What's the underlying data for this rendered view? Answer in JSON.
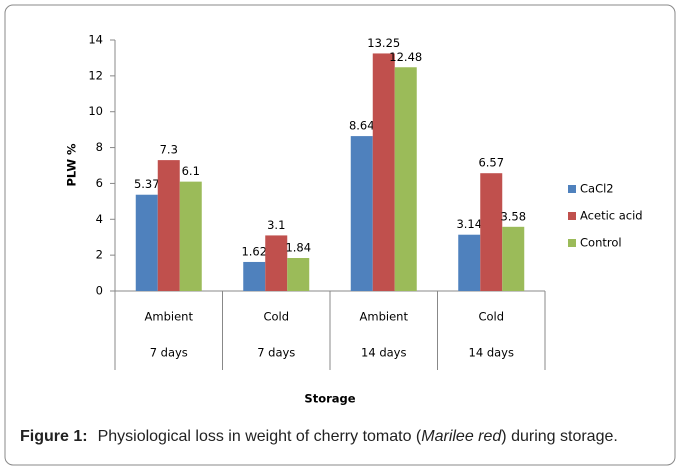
{
  "chart_data": {
    "type": "bar",
    "categories": [
      "Ambient",
      "Cold",
      "Ambient",
      "Cold"
    ],
    "groups": [
      "7 days",
      "7 days",
      "14 days",
      "14 days"
    ],
    "series": [
      {
        "name": "CaCl2",
        "color": "#4f81bd",
        "values": [
          5.37,
          1.62,
          8.64,
          3.14
        ]
      },
      {
        "name": "Acetic acid",
        "color": "#c0504d",
        "values": [
          7.3,
          3.1,
          13.25,
          6.57
        ]
      },
      {
        "name": "Control",
        "color": "#9bbb59",
        "values": [
          6.1,
          1.84,
          12.48,
          3.58
        ]
      }
    ],
    "ylim": [
      0,
      14
    ],
    "yticks": [
      0,
      2,
      4,
      6,
      8,
      10,
      12,
      14
    ],
    "y_label": "PLW %",
    "x_label": "Storage",
    "legend": "right",
    "caption": [
      "Figure 1:",
      "Physiological loss in weight of cherry tomato (",
      "Marilee red",
      ") during storage."
    ]
  }
}
